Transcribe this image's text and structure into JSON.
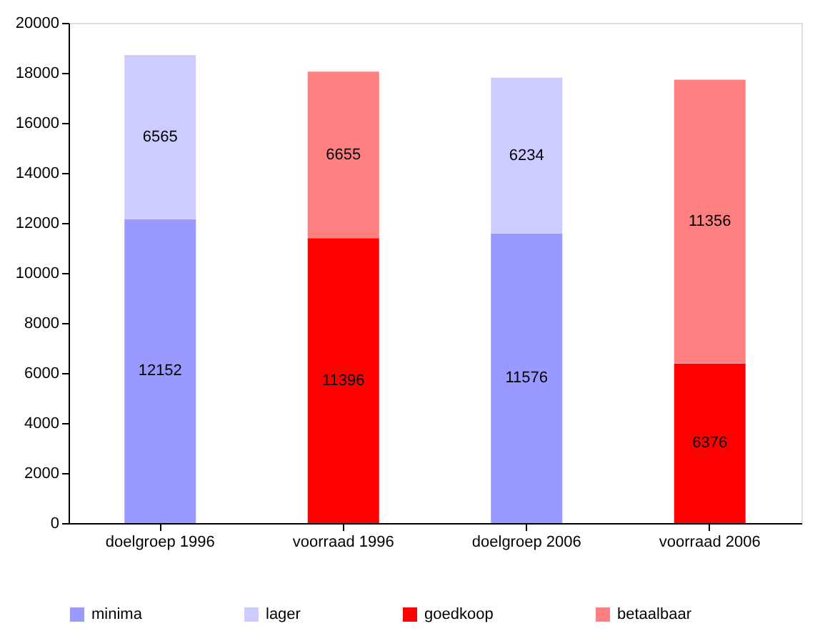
{
  "chart_data": {
    "type": "bar",
    "stacked": true,
    "categories": [
      "doelgroep 1996",
      "voorraad 1996",
      "doelgroep 2006",
      "voorraad 2006"
    ],
    "series": [
      {
        "name": "minima",
        "color": "#9999ff",
        "values": [
          12152,
          null,
          11576,
          null
        ]
      },
      {
        "name": "lager",
        "color": "#ccccff",
        "values": [
          6565,
          null,
          6234,
          null
        ]
      },
      {
        "name": "goedkoop",
        "color": "#ff0000",
        "values": [
          null,
          11396,
          null,
          6376
        ]
      },
      {
        "name": "betaalbaar",
        "color": "#ff8080",
        "values": [
          null,
          6655,
          null,
          11356
        ]
      }
    ],
    "ylim": [
      0,
      20000
    ],
    "yticks": [
      0,
      2000,
      4000,
      6000,
      8000,
      10000,
      12000,
      14000,
      16000,
      18000,
      20000
    ],
    "data_labels": true,
    "grid": false,
    "legend": "bottom"
  }
}
